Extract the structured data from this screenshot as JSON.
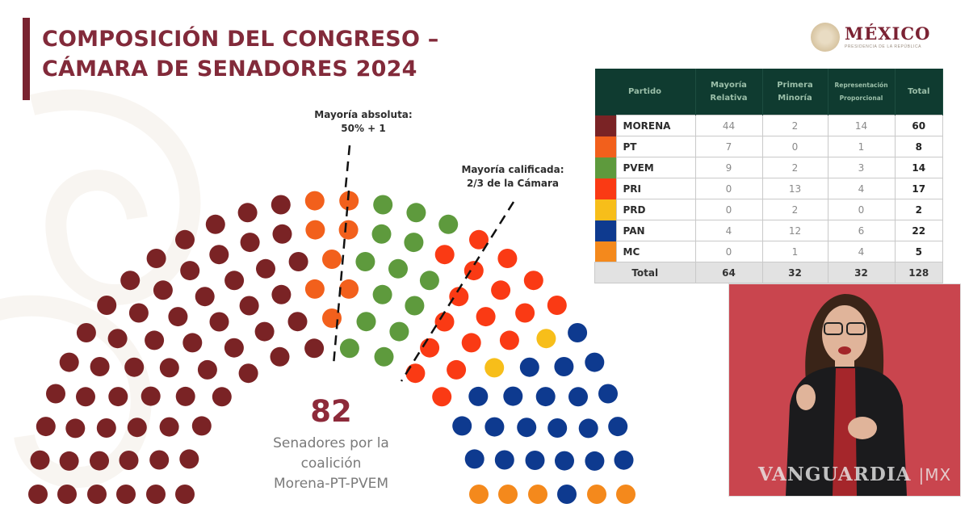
{
  "header": {
    "title_line1": "COMPOSICIÓN DEL CONGRESO –",
    "title_line2": "CÁMARA DE SENADORES 2024"
  },
  "logo": {
    "name": "MÉXICO",
    "subtitle": "PRESIDENCIA DE LA REPÚBLICA"
  },
  "annotations": {
    "absolute_majority_line1": "Mayoría absoluta:",
    "absolute_majority_line2": "50% + 1",
    "qualified_majority_line1": "Mayoría calificada:",
    "qualified_majority_line2": "2/3 de la Cámara"
  },
  "coalition": {
    "count": "82",
    "line1": "Senadores por la",
    "line2": "coalición",
    "line3": "Morena-PT-PVEM"
  },
  "table": {
    "headers": [
      "Partido",
      "Mayoría Relativa",
      "Primera Minoría",
      "Representación Proporcional",
      "Total"
    ],
    "rows": [
      {
        "party": "MORENA",
        "color": "#7a2325",
        "mr": "44",
        "pm": "2",
        "rp": "14",
        "total": "60"
      },
      {
        "party": "PT",
        "color": "#f2601c",
        "mr": "7",
        "pm": "0",
        "rp": "1",
        "total": "8"
      },
      {
        "party": "PVEM",
        "color": "#5e9a3d",
        "mr": "9",
        "pm": "2",
        "rp": "3",
        "total": "14"
      },
      {
        "party": "PRI",
        "color": "#fa3a14",
        "mr": "0",
        "pm": "13",
        "rp": "4",
        "total": "17"
      },
      {
        "party": "PRD",
        "color": "#f7be1a",
        "mr": "0",
        "pm": "2",
        "rp": "0",
        "total": "2"
      },
      {
        "party": "PAN",
        "color": "#0e3a8f",
        "mr": "4",
        "pm": "12",
        "rp": "6",
        "total": "22"
      },
      {
        "party": "MC",
        "color": "#f4891c",
        "mr": "0",
        "pm": "1",
        "rp": "4",
        "total": "5"
      }
    ],
    "total_row": {
      "label": "Total",
      "mr": "64",
      "pm": "32",
      "rp": "32",
      "total": "128"
    }
  },
  "video": {
    "watermark": "VANGUARDIA",
    "watermark_suffix": "MX"
  },
  "chart_data": {
    "type": "parliament",
    "title": "COMPOSICIÓN DEL CONGRESO – CÁMARA DE SENADORES 2024",
    "total_seats": 128,
    "series": [
      {
        "name": "MORENA",
        "value": 60,
        "color": "#7a2325"
      },
      {
        "name": "PT",
        "value": 8,
        "color": "#f2601c"
      },
      {
        "name": "PVEM",
        "value": 14,
        "color": "#5e9a3d"
      },
      {
        "name": "PRI",
        "value": 17,
        "color": "#fa3a14"
      },
      {
        "name": "PRD",
        "value": 2,
        "color": "#f7be1a"
      },
      {
        "name": "PAN",
        "value": 22,
        "color": "#0e3a8f"
      },
      {
        "name": "MC",
        "value": 5,
        "color": "#f4891c"
      }
    ],
    "thresholds": [
      {
        "label": "Mayoría absoluta: 50% + 1",
        "seats": 65
      },
      {
        "label": "Mayoría calificada: 2/3 de la Cámara",
        "seats": 86
      }
    ],
    "annotation": "82 Senadores por la coalición Morena-PT-PVEM",
    "breakdown_table": {
      "columns": [
        "Partido",
        "Mayoría Relativa",
        "Primera Minoría",
        "Representación Proporcional",
        "Total"
      ],
      "rows": [
        [
          "MORENA",
          44,
          2,
          14,
          60
        ],
        [
          "PT",
          7,
          0,
          1,
          8
        ],
        [
          "PVEM",
          9,
          2,
          3,
          14
        ],
        [
          "PRI",
          0,
          13,
          4,
          17
        ],
        [
          "PRD",
          0,
          2,
          0,
          2
        ],
        [
          "PAN",
          4,
          12,
          6,
          22
        ],
        [
          "MC",
          0,
          1,
          4,
          5
        ],
        [
          "Total",
          64,
          32,
          32,
          128
        ]
      ]
    }
  }
}
